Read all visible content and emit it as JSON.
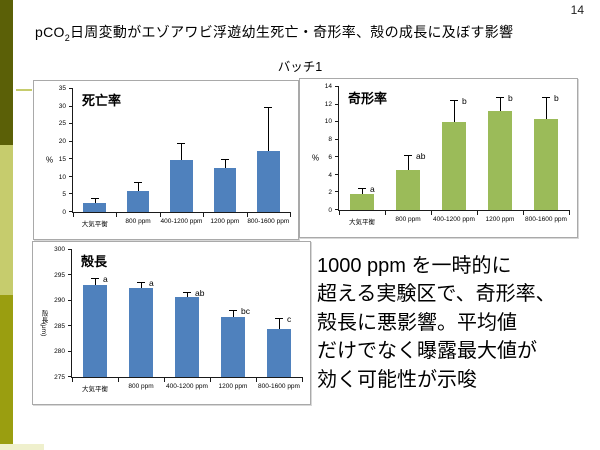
{
  "page": {
    "number": "14"
  },
  "title": {
    "prefix": "pCO",
    "subscript": "2",
    "rest": "日周変動がエゾアワビ浮遊幼生死亡・奇形率、殻の成長に及ぼす影響"
  },
  "subtitle": "バッチ1",
  "note": "1000 ppm を一時的に\n超える実験区で、奇形率、\n殻長に悪影響。平均値\nだけでなく曝露最大値が\n効く可能性が示唆",
  "colors": {
    "bar_blue": "#4f81bd",
    "bar_green": "#9bbb59",
    "sidebar_dark": "#5b6007",
    "sidebar_light": "#c6cc6d",
    "sidebar_mid": "#9a9e10",
    "sidebar_pale": "#eff0cd",
    "dash": "#c6cc6d"
  },
  "chart_data": [
    {
      "id": "mortality",
      "type": "bar",
      "title": "死亡率",
      "ylabel": "%",
      "ylabel_vertical": false,
      "ylim": [
        0,
        35
      ],
      "ytick": 5,
      "categories": [
        "大気平衡",
        "800 ppm",
        "400-1200 ppm",
        "1200 ppm",
        "800-1600 ppm"
      ],
      "values": [
        2.5,
        6.0,
        14.9,
        12.6,
        17.5
      ],
      "errors": [
        1.3,
        2.3,
        4.4,
        2.2,
        12.1
      ],
      "letters": [
        "",
        "",
        "",
        "",
        ""
      ],
      "bar_color": "#4f81bd",
      "grid": false,
      "legend": "none"
    },
    {
      "id": "malformation",
      "type": "bar",
      "title": "奇形率",
      "ylabel": "%",
      "ylabel_vertical": false,
      "ylim": [
        0,
        14
      ],
      "ytick": 2,
      "categories": [
        "大気平衡",
        "800 ppm",
        "400-1200 ppm",
        "1200 ppm",
        "800-1600 ppm"
      ],
      "values": [
        1.8,
        4.6,
        10.0,
        11.3,
        10.4
      ],
      "errors": [
        0.6,
        1.5,
        2.4,
        1.4,
        2.4
      ],
      "letters": [
        "a",
        "ab",
        "b",
        "b",
        "b"
      ],
      "bar_color": "#9bbb59",
      "grid": false,
      "legend": "none"
    },
    {
      "id": "shell",
      "type": "bar",
      "title": "殻長",
      "ylabel": "殻長(μm)",
      "ylabel_vertical": true,
      "ylim": [
        275,
        300
      ],
      "ytick": 5,
      "categories": [
        "大気平衡",
        "800 ppm",
        "400-1200 ppm",
        "1200 ppm",
        "800-1600 ppm"
      ],
      "values": [
        293.2,
        292.6,
        290.7,
        286.8,
        284.5
      ],
      "errors": [
        1.1,
        0.9,
        0.9,
        1.1,
        1.9
      ],
      "letters": [
        "a",
        "a",
        "ab",
        "bc",
        "c"
      ],
      "bar_color": "#4f81bd",
      "grid": false,
      "legend": "none"
    }
  ]
}
